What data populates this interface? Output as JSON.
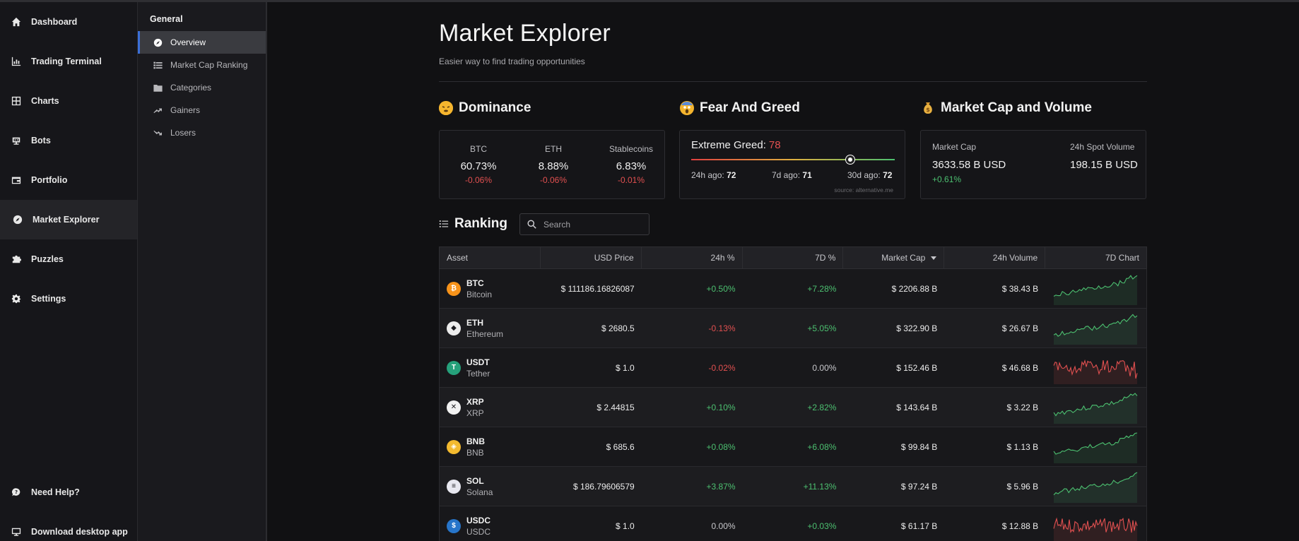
{
  "nav": {
    "items": [
      {
        "label": "Dashboard",
        "icon": "home-icon"
      },
      {
        "label": "Trading Terminal",
        "icon": "bar-chart-icon"
      },
      {
        "label": "Charts",
        "icon": "grid-icon"
      },
      {
        "label": "Bots",
        "icon": "bot-icon"
      },
      {
        "label": "Portfolio",
        "icon": "wallet-icon"
      },
      {
        "label": "Market Explorer",
        "icon": "compass-icon"
      },
      {
        "label": "Puzzles",
        "icon": "puzzle-icon"
      },
      {
        "label": "Settings",
        "icon": "gear-icon"
      }
    ],
    "help": "Need Help?",
    "download": "Download desktop app"
  },
  "subnav": {
    "title": "General",
    "items": [
      {
        "label": "Overview",
        "icon": "compass-icon"
      },
      {
        "label": "Market Cap Ranking",
        "icon": "list-icon"
      },
      {
        "label": "Categories",
        "icon": "folder-icon"
      },
      {
        "label": "Gainers",
        "icon": "trend-up-icon"
      },
      {
        "label": "Losers",
        "icon": "trend-down-icon"
      }
    ]
  },
  "page": {
    "title": "Market Explorer",
    "subtitle": "Easier way to find trading opportunities"
  },
  "dominance": {
    "title": "Dominance",
    "cols": [
      {
        "label": "BTC",
        "value": "60.73%",
        "change": "-0.06%"
      },
      {
        "label": "ETH",
        "value": "8.88%",
        "change": "-0.06%"
      },
      {
        "label": "Stablecoins",
        "value": "6.83%",
        "change": "-0.01%"
      }
    ]
  },
  "fear_greed": {
    "title": "Fear And Greed",
    "label": "Extreme Greed:",
    "value": "78",
    "value_num": 78,
    "ago_24h_label": "24h ago:",
    "ago_24h": "72",
    "ago_7d_label": "7d ago:",
    "ago_7d": "71",
    "ago_30d_label": "30d ago:",
    "ago_30d": "72",
    "source": "source: alternative.me"
  },
  "market_cap": {
    "title": "Market Cap and Volume",
    "cap_label": "Market Cap",
    "cap_value": "3633.58 B USD",
    "cap_change": "+0.61%",
    "vol_label": "24h Spot Volume",
    "vol_value": "198.15 B USD"
  },
  "ranking": {
    "title": "Ranking",
    "search_placeholder": "Search",
    "columns": [
      "Asset",
      "USD Price",
      "24h %",
      "7D %",
      "Market Cap",
      "24h Volume",
      "7D Chart"
    ],
    "rows": [
      {
        "sym": "BTC",
        "name": "Bitcoin",
        "price": "$ 111186.16826087",
        "d24": "+0.50%",
        "d7": "+7.28%",
        "cap": "$ 2206.88 B",
        "vol": "$ 38.43 B",
        "color": "#f7931a",
        "glyph": "₿",
        "trend": "up"
      },
      {
        "sym": "ETH",
        "name": "Ethereum",
        "price": "$ 2680.5",
        "d24": "-0.13%",
        "d7": "+5.05%",
        "cap": "$ 322.90 B",
        "vol": "$ 26.67 B",
        "color": "#ececec",
        "glyph": "◆",
        "trend": "up"
      },
      {
        "sym": "USDT",
        "name": "Tether",
        "price": "$ 1.0",
        "d24": "-0.02%",
        "d7": "0.00%",
        "cap": "$ 152.46 B",
        "vol": "$ 46.68 B",
        "color": "#26a17b",
        "glyph": "T",
        "trend": "noisy"
      },
      {
        "sym": "XRP",
        "name": "XRP",
        "price": "$ 2.44815",
        "d24": "+0.10%",
        "d7": "+2.82%",
        "cap": "$ 143.64 B",
        "vol": "$ 3.22 B",
        "color": "#f2f2f2",
        "glyph": "✕",
        "trend": "up"
      },
      {
        "sym": "BNB",
        "name": "BNB",
        "price": "$ 685.6",
        "d24": "+0.08%",
        "d7": "+6.08%",
        "cap": "$ 99.84 B",
        "vol": "$ 1.13 B",
        "color": "#f3ba2f",
        "glyph": "◈",
        "trend": "up"
      },
      {
        "sym": "SOL",
        "name": "Solana",
        "price": "$ 186.79606579",
        "d24": "+3.87%",
        "d7": "+11.13%",
        "cap": "$ 97.24 B",
        "vol": "$ 5.96 B",
        "color": "#e8e8f0",
        "glyph": "≡",
        "trend": "up"
      },
      {
        "sym": "USDC",
        "name": "USDC",
        "price": "$ 1.0",
        "d24": "0.00%",
        "d7": "+0.03%",
        "cap": "$ 61.17 B",
        "vol": "$ 12.88 B",
        "color": "#2775ca",
        "glyph": "$",
        "trend": "noisy"
      }
    ]
  },
  "colors": {
    "positive": "#4cc070",
    "negative": "#e25050",
    "accent": "#3b6fd8"
  }
}
